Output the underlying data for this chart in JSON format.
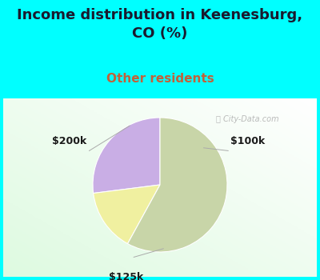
{
  "title": "Income distribution in Keenesburg,\nCO (%)",
  "subtitle": "Other residents",
  "title_color": "#1a1a2e",
  "subtitle_color": "#c0623a",
  "title_fontsize": 13,
  "subtitle_fontsize": 11,
  "top_bg_color": "#00ffff",
  "slices": [
    {
      "label": "$100k",
      "value": 27,
      "color": "#c9aee5"
    },
    {
      "label": "$200k",
      "value": 15,
      "color": "#f0f0a0"
    },
    {
      "label": "$125k",
      "value": 58,
      "color": "#c8d5a8"
    }
  ],
  "startangle": 90,
  "label_color": "#1a1a1a",
  "label_fontsize": 9
}
